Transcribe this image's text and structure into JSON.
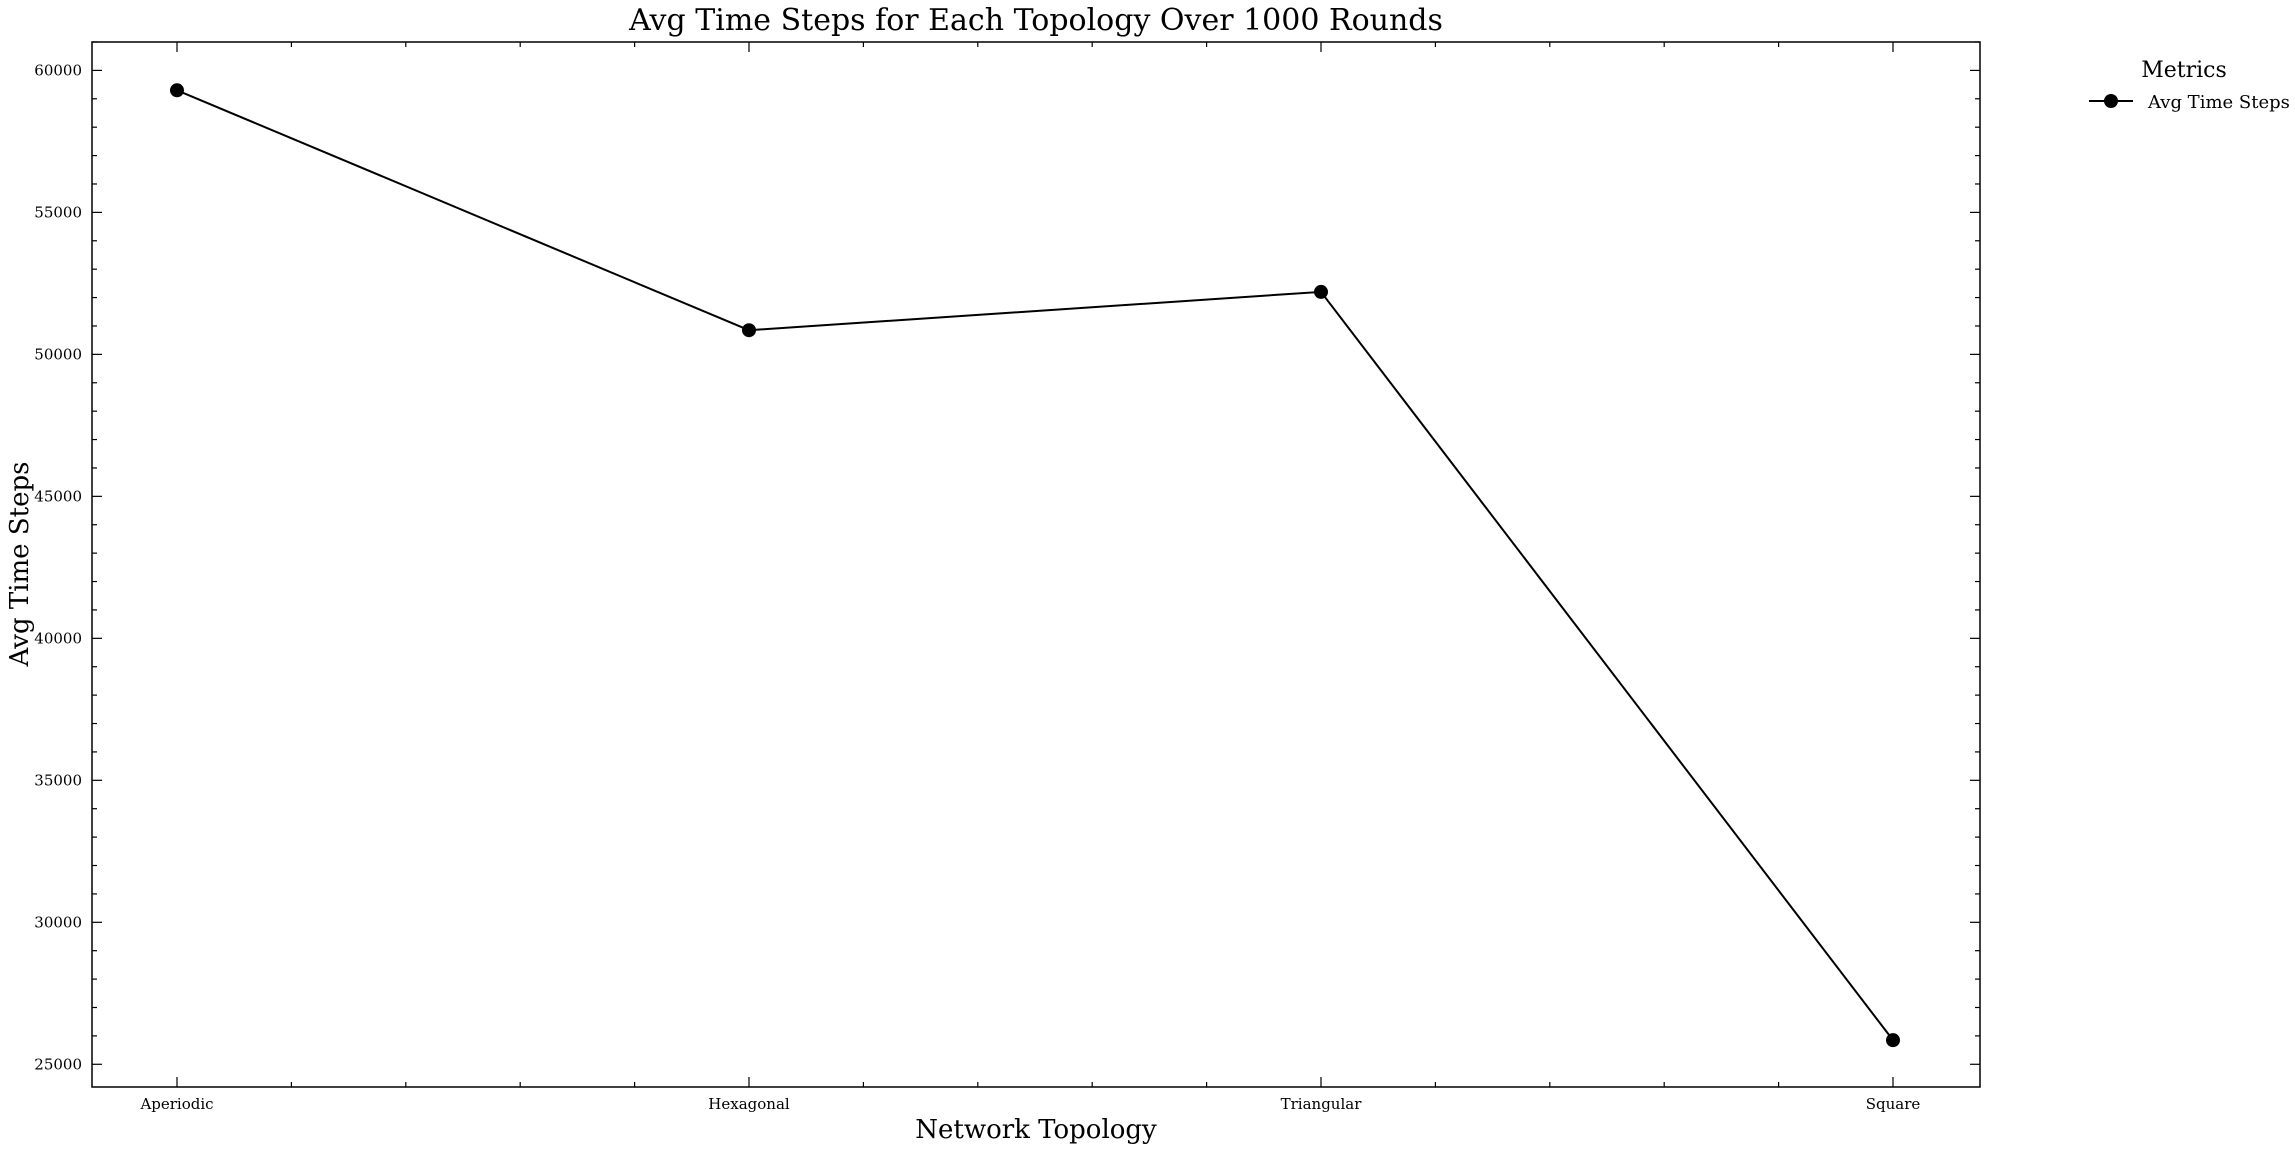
{
  "chart_data": {
    "type": "line",
    "title": "Avg Time Steps for Each Topology Over 1000 Rounds",
    "xlabel": "Network Topology",
    "ylabel": "Avg Time Steps",
    "categories": [
      "Aperiodic",
      "Hexagonal",
      "Triangular",
      "Square"
    ],
    "series": [
      {
        "name": "Avg Time Steps",
        "values": [
          59300,
          50850,
          52200,
          25850
        ],
        "color": "#000000",
        "marker": "circle"
      }
    ],
    "ylim": [
      24200,
      61000
    ],
    "yticks": [
      25000,
      30000,
      35000,
      40000,
      45000,
      50000,
      55000,
      60000
    ],
    "ytick_labels": [
      "25000",
      "30000",
      "35000",
      "40000",
      "45000",
      "50000",
      "55000",
      "60000"
    ],
    "grid": false,
    "legend": {
      "title": "Metrics",
      "placement": "outside-top-right"
    }
  }
}
